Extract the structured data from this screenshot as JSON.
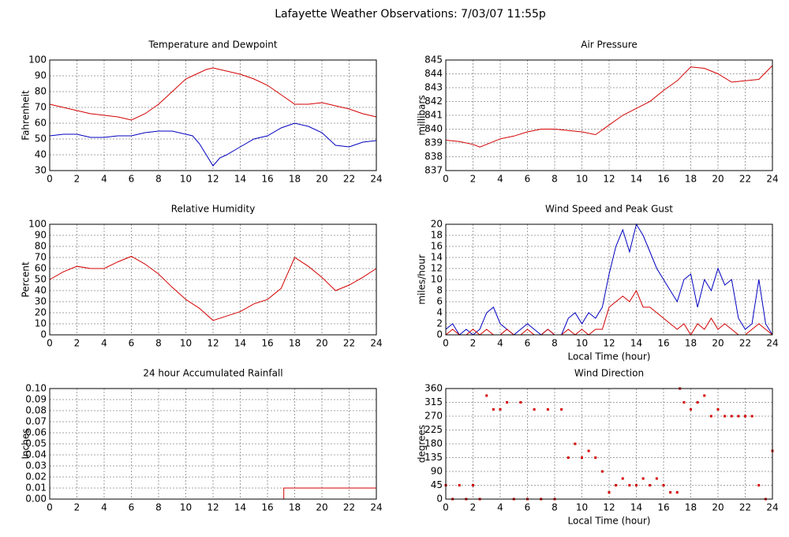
{
  "title": "Lafayette Weather Observations: 7/03/07 11:55p",
  "chart_data": [
    {
      "type": "line",
      "title": "Temperature and Dewpoint",
      "ylabel": "Fahrenheit",
      "x": [
        0,
        1,
        2,
        3,
        4,
        5,
        6,
        7,
        8,
        9,
        10,
        10.5,
        11,
        11.5,
        12,
        12.5,
        13,
        14,
        15,
        16,
        17,
        18,
        19,
        20,
        21,
        22,
        23,
        24
      ],
      "series": [
        {
          "color": "#d40000",
          "values": [
            72,
            70,
            68,
            66,
            65,
            64,
            62,
            66,
            72,
            80,
            88,
            90,
            92,
            94,
            95,
            94,
            93,
            91,
            88,
            84,
            78,
            72,
            72,
            73,
            71,
            69,
            66,
            64
          ]
        },
        {
          "color": "#0000c0",
          "values": [
            52,
            53,
            53,
            51,
            51,
            52,
            52,
            54,
            55,
            55,
            53,
            52,
            47,
            40,
            33,
            38,
            40,
            45,
            50,
            52,
            57,
            60,
            58,
            54,
            46,
            45,
            48,
            49
          ]
        }
      ],
      "xlim": [
        0,
        24
      ],
      "ylim": [
        30,
        100
      ],
      "xticks": [
        0,
        2,
        4,
        6,
        8,
        10,
        12,
        14,
        16,
        18,
        20,
        22,
        24
      ],
      "yticks": [
        30,
        40,
        50,
        60,
        70,
        80,
        90,
        100
      ],
      "grid": true
    },
    {
      "type": "line",
      "title": "Air Pressure",
      "ylabel": "millibars",
      "x": [
        0,
        1,
        2,
        2.5,
        3,
        4,
        5,
        6,
        7,
        8,
        9,
        10,
        11,
        12,
        13,
        14,
        15,
        16,
        17,
        18,
        19,
        20,
        21,
        22,
        23,
        24
      ],
      "series": [
        {
          "color": "#d40000",
          "values": [
            839.2,
            839.1,
            838.9,
            838.7,
            838.9,
            839.3,
            839.5,
            839.8,
            840,
            840,
            839.9,
            839.8,
            839.6,
            840.3,
            841,
            841.5,
            842,
            842.8,
            843.5,
            844.5,
            844.4,
            844,
            843.4,
            843.5,
            843.6,
            844.6
          ]
        }
      ],
      "xlim": [
        0,
        24
      ],
      "ylim": [
        837,
        845
      ],
      "xticks": [
        0,
        2,
        4,
        6,
        8,
        10,
        12,
        14,
        16,
        18,
        20,
        22,
        24
      ],
      "yticks": [
        837,
        838,
        839,
        840,
        841,
        842,
        843,
        844,
        845
      ],
      "grid": true
    },
    {
      "type": "line",
      "title": "Relative Humidity",
      "ylabel": "Percent",
      "x": [
        0,
        1,
        2,
        3,
        4,
        5,
        6,
        7,
        8,
        9,
        10,
        11,
        12,
        13,
        14,
        15,
        16,
        17,
        18,
        19,
        20,
        21,
        22,
        23,
        24
      ],
      "series": [
        {
          "color": "#d40000",
          "values": [
            50,
            57,
            62,
            60,
            60,
            66,
            71,
            64,
            55,
            43,
            32,
            24,
            13,
            17,
            21,
            28,
            32,
            42,
            70,
            62,
            52,
            40,
            45,
            52,
            60
          ]
        }
      ],
      "xlim": [
        0,
        24
      ],
      "ylim": [
        0,
        100
      ],
      "xticks": [
        0,
        2,
        4,
        6,
        8,
        10,
        12,
        14,
        16,
        18,
        20,
        22,
        24
      ],
      "yticks": [
        0,
        10,
        20,
        30,
        40,
        50,
        60,
        70,
        80,
        90,
        100
      ],
      "grid": true
    },
    {
      "type": "line",
      "title": "Wind Speed and Peak Gust",
      "ylabel": "miles/hour",
      "xlabel": "Local Time (hour)",
      "x": [
        0,
        0.5,
        1,
        1.5,
        2,
        2.5,
        3,
        3.5,
        4,
        4.5,
        5,
        5.5,
        6,
        6.5,
        7,
        7.5,
        8,
        8.5,
        9,
        9.5,
        10,
        10.5,
        11,
        11.5,
        12,
        12.5,
        13,
        13.5,
        14,
        14.5,
        15,
        15.5,
        16,
        16.5,
        17,
        17.5,
        18,
        18.5,
        19,
        19.5,
        20,
        20.5,
        21,
        21.5,
        22,
        22.5,
        23,
        23.5,
        24
      ],
      "series": [
        {
          "color": "#0000c0",
          "values": [
            1,
            2,
            0,
            1,
            0,
            1,
            4,
            5,
            2,
            1,
            0,
            1,
            2,
            1,
            0,
            1,
            0,
            0,
            3,
            4,
            2,
            4,
            3,
            5,
            11,
            16,
            19,
            15,
            20,
            18,
            15,
            12,
            10,
            8,
            6,
            10,
            11,
            5,
            10,
            8,
            12,
            9,
            10,
            3,
            1,
            2,
            10,
            2,
            0
          ]
        },
        {
          "color": "#d40000",
          "values": [
            0,
            1,
            0,
            0,
            1,
            0,
            1,
            0,
            0,
            1,
            0,
            0,
            1,
            0,
            0,
            1,
            0,
            0,
            1,
            0,
            1,
            0,
            1,
            1,
            5,
            6,
            7,
            6,
            8,
            5,
            5,
            4,
            3,
            2,
            1,
            2,
            0,
            2,
            1,
            3,
            1,
            2,
            1,
            0,
            0,
            1,
            2,
            1,
            0
          ]
        }
      ],
      "xlim": [
        0,
        24
      ],
      "ylim": [
        0,
        20
      ],
      "xticks": [
        0,
        2,
        4,
        6,
        8,
        10,
        12,
        14,
        16,
        18,
        20,
        22,
        24
      ],
      "yticks": [
        0,
        2,
        4,
        6,
        8,
        10,
        12,
        14,
        16,
        18,
        20
      ],
      "grid": true
    },
    {
      "type": "line",
      "title": "24 hour Accumulated Rainfall",
      "ylabel": "Inches",
      "x": [
        0,
        17.2,
        17.2,
        24
      ],
      "series": [
        {
          "color": "#d40000",
          "values": [
            0,
            0,
            0.01,
            0.01
          ]
        }
      ],
      "xlim": [
        0,
        24
      ],
      "ylim": [
        0,
        0.1
      ],
      "xticks": [
        0,
        2,
        4,
        6,
        8,
        10,
        12,
        14,
        16,
        18,
        20,
        22,
        24
      ],
      "yticks": [
        {
          "value": 0,
          "label": "0.00"
        },
        {
          "value": 0.01,
          "label": "0.01"
        },
        {
          "value": 0.02,
          "label": "0.02"
        },
        {
          "value": 0.03,
          "label": "0.03"
        },
        {
          "value": 0.04,
          "label": "0.04"
        },
        {
          "value": 0.05,
          "label": "0.05"
        },
        {
          "value": 0.06,
          "label": "0.06"
        },
        {
          "value": 0.07,
          "label": "0.07"
        },
        {
          "value": 0.08,
          "label": "0.08"
        },
        {
          "value": 0.09,
          "label": "0.09"
        },
        {
          "value": 0.1,
          "label": "0.10"
        }
      ],
      "grid": true
    },
    {
      "type": "scatter",
      "title": "Wind Direction",
      "ylabel": "degrees",
      "xlabel": "Local Time (hour)",
      "x": [
        0,
        0.5,
        1,
        1.5,
        2,
        2.5,
        3,
        3.5,
        4,
        4.5,
        5,
        5.5,
        6,
        6.5,
        7,
        7.5,
        8,
        8.5,
        9,
        9.5,
        10,
        10.5,
        11,
        11.5,
        12,
        12.5,
        13,
        13.5,
        14,
        14.5,
        15,
        15.5,
        16,
        16.5,
        17,
        17.2,
        17.5,
        18,
        18.5,
        19,
        19.5,
        20,
        20.5,
        21,
        21.5,
        22,
        22.5,
        23,
        23.5,
        24
      ],
      "series": [
        {
          "color": "#d40000",
          "values": [
            45,
            0,
            45,
            0,
            45,
            0,
            337,
            292,
            292,
            315,
            0,
            315,
            0,
            292,
            0,
            292,
            0,
            292,
            135,
            180,
            135,
            157,
            135,
            90,
            22,
            45,
            67,
            45,
            45,
            67,
            45,
            67,
            45,
            22,
            22,
            360,
            315,
            292,
            315,
            337,
            270,
            292,
            270,
            270,
            270,
            270,
            270,
            45,
            0,
            157
          ]
        }
      ],
      "xlim": [
        0,
        24
      ],
      "ylim": [
        0,
        360
      ],
      "xticks": [
        0,
        2,
        4,
        6,
        8,
        10,
        12,
        14,
        16,
        18,
        20,
        22,
        24
      ],
      "yticks": [
        0,
        45,
        90,
        135,
        180,
        225,
        270,
        315,
        360
      ],
      "grid": true
    }
  ]
}
